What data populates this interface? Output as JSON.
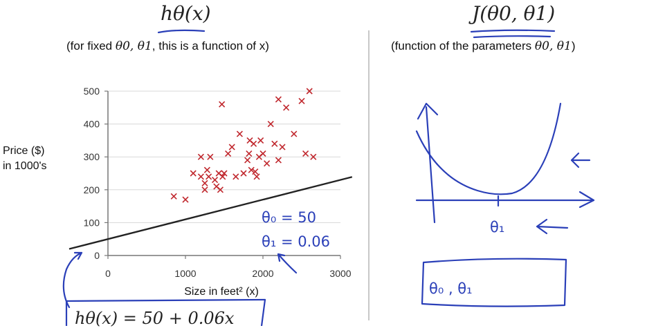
{
  "left": {
    "title": "hθ(x)",
    "subtitle_prefix": "(for fixed ",
    "subtitle_params": "θ0, θ1",
    "subtitle_suffix": ", this is a function of x)",
    "ylabel_line1": "Price ($)",
    "ylabel_line2": "in 1000's",
    "xlabel": "Size in feet² (x)",
    "handwriting": {
      "theta0": "θ₀ = 50",
      "theta1": "θ₁ = 0.06"
    },
    "formula": "hθ(x) = 50 + 0.06x"
  },
  "right": {
    "title": "J(θ0, θ1)",
    "subtitle_prefix": "(function of the parameters ",
    "subtitle_params": "θ0, θ1",
    "subtitle_suffix": ")",
    "handwriting": {
      "axis_label": "θ₁",
      "box_label": "θ₀ , θ₁"
    }
  },
  "chart_data": {
    "type": "scatter",
    "x_range": [
      0,
      3000
    ],
    "y_range": [
      0,
      500
    ],
    "x_ticks": [
      0,
      1000,
      2000,
      3000
    ],
    "y_ticks": [
      0,
      100,
      200,
      300,
      400,
      500
    ],
    "grid": true,
    "points": [
      [
        850,
        180
      ],
      [
        1000,
        170
      ],
      [
        1100,
        250
      ],
      [
        1200,
        300
      ],
      [
        1200,
        240
      ],
      [
        1250,
        220
      ],
      [
        1250,
        200
      ],
      [
        1280,
        260
      ],
      [
        1300,
        240
      ],
      [
        1320,
        300
      ],
      [
        1380,
        230
      ],
      [
        1400,
        210
      ],
      [
        1430,
        250
      ],
      [
        1450,
        200
      ],
      [
        1470,
        460
      ],
      [
        1480,
        240
      ],
      [
        1500,
        250
      ],
      [
        1550,
        310
      ],
      [
        1600,
        330
      ],
      [
        1650,
        240
      ],
      [
        1700,
        370
      ],
      [
        1750,
        250
      ],
      [
        1800,
        290
      ],
      [
        1820,
        310
      ],
      [
        1830,
        350
      ],
      [
        1850,
        260
      ],
      [
        1880,
        340
      ],
      [
        1900,
        255
      ],
      [
        1920,
        240
      ],
      [
        1950,
        300
      ],
      [
        1970,
        350
      ],
      [
        2000,
        310
      ],
      [
        2050,
        280
      ],
      [
        2100,
        400
      ],
      [
        2150,
        340
      ],
      [
        2200,
        475
      ],
      [
        2200,
        290
      ],
      [
        2250,
        330
      ],
      [
        2300,
        450
      ],
      [
        2400,
        370
      ],
      [
        2500,
        470
      ],
      [
        2550,
        310
      ],
      [
        2600,
        500
      ],
      [
        2650,
        300
      ]
    ],
    "line": {
      "theta0": 50,
      "theta1": 0.06,
      "x_start": -500,
      "x_end": 3150
    }
  }
}
